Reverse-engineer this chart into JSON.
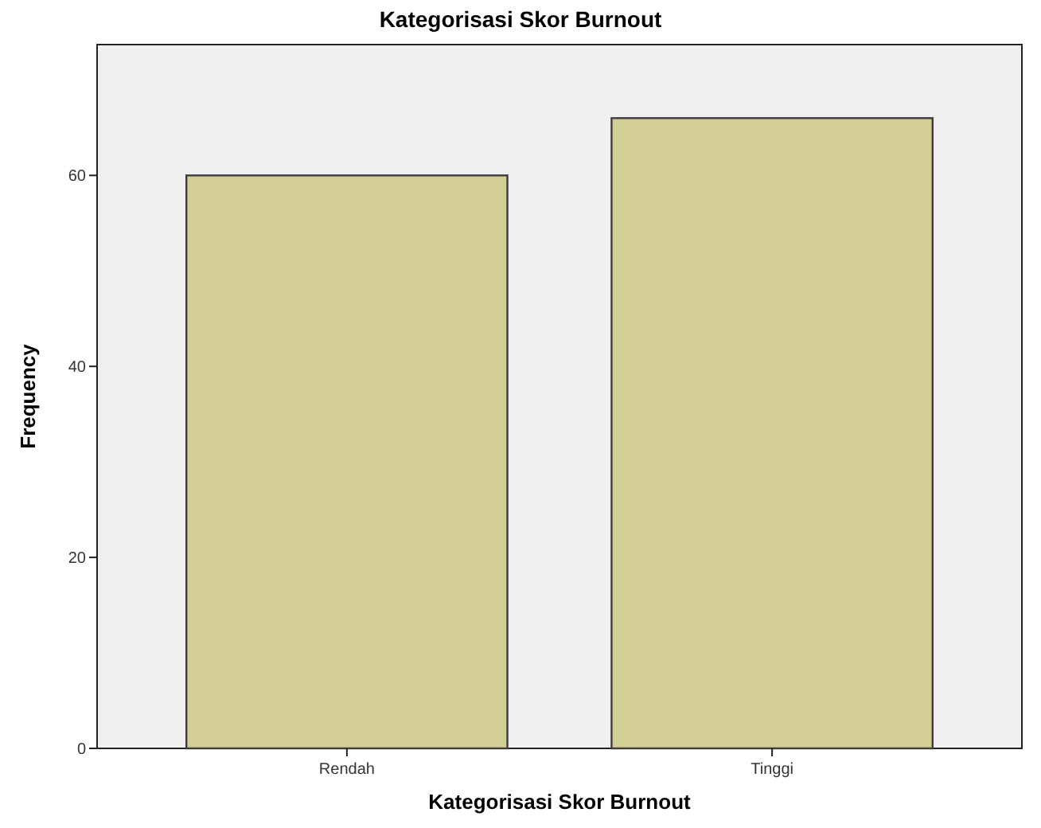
{
  "chart_data": {
    "type": "bar",
    "title": "Kategorisasi Skor Burnout",
    "xlabel": "Kategorisasi Skor Burnout",
    "ylabel": "Frequency",
    "categories": [
      "Rendah",
      "Tinggi"
    ],
    "values": [
      60,
      66
    ],
    "color": "#d2ce96",
    "ylim": [
      0,
      73.7
    ],
    "yticks": [
      0,
      20,
      40,
      60
    ],
    "grid": false
  }
}
